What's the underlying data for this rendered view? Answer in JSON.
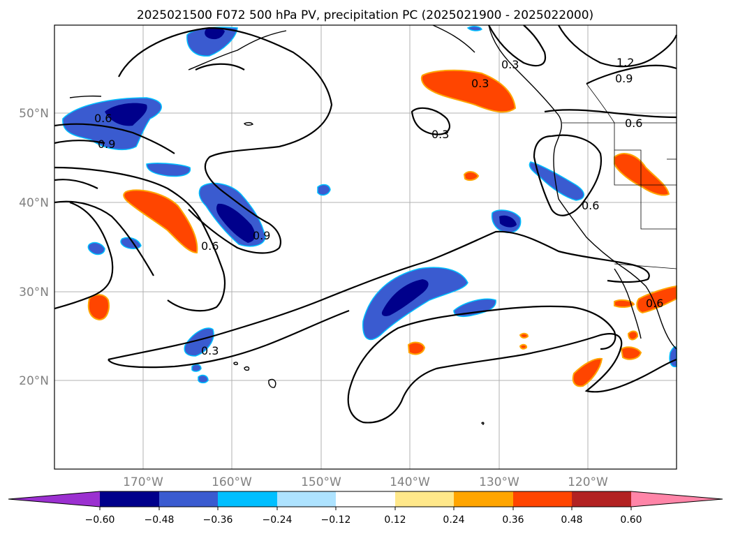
{
  "title": "2025021500 F072 500 hPa PV, precipitation PC (2025021900 - 2025022000)",
  "lat_labels": [
    "50°N",
    "40°N",
    "30°N",
    "20°N"
  ],
  "lon_labels": [
    "170°W",
    "160°W",
    "150°W",
    "140°W",
    "130°W",
    "120°W"
  ],
  "contour_labels": [
    "0.6",
    "0.9",
    "0.6",
    "0.9",
    "0.3",
    "0.3",
    "0.3",
    "0.6",
    "1.2",
    "0.9",
    "0.6",
    "0.6",
    "0.3"
  ],
  "colorbar": {
    "ticks": [
      "−0.60",
      "−0.48",
      "−0.36",
      "−0.24",
      "−0.12",
      "0.12",
      "0.24",
      "0.36",
      "0.48",
      "0.60"
    ],
    "colors": [
      "#9b30d0",
      "#00008b",
      "#3a5bd0",
      "#00bfff",
      "#aee3ff",
      "#ffffff",
      "#ffe88a",
      "#ffa500",
      "#ff4500",
      "#b22222",
      "#ff85a8"
    ]
  },
  "fill_colors": {
    "neg_light": "#3a5bd0",
    "neg_dark": "#00008b",
    "neg_edge": "#00bfff",
    "pos_light": "#ff4500",
    "pos_edge": "#ffa500"
  }
}
